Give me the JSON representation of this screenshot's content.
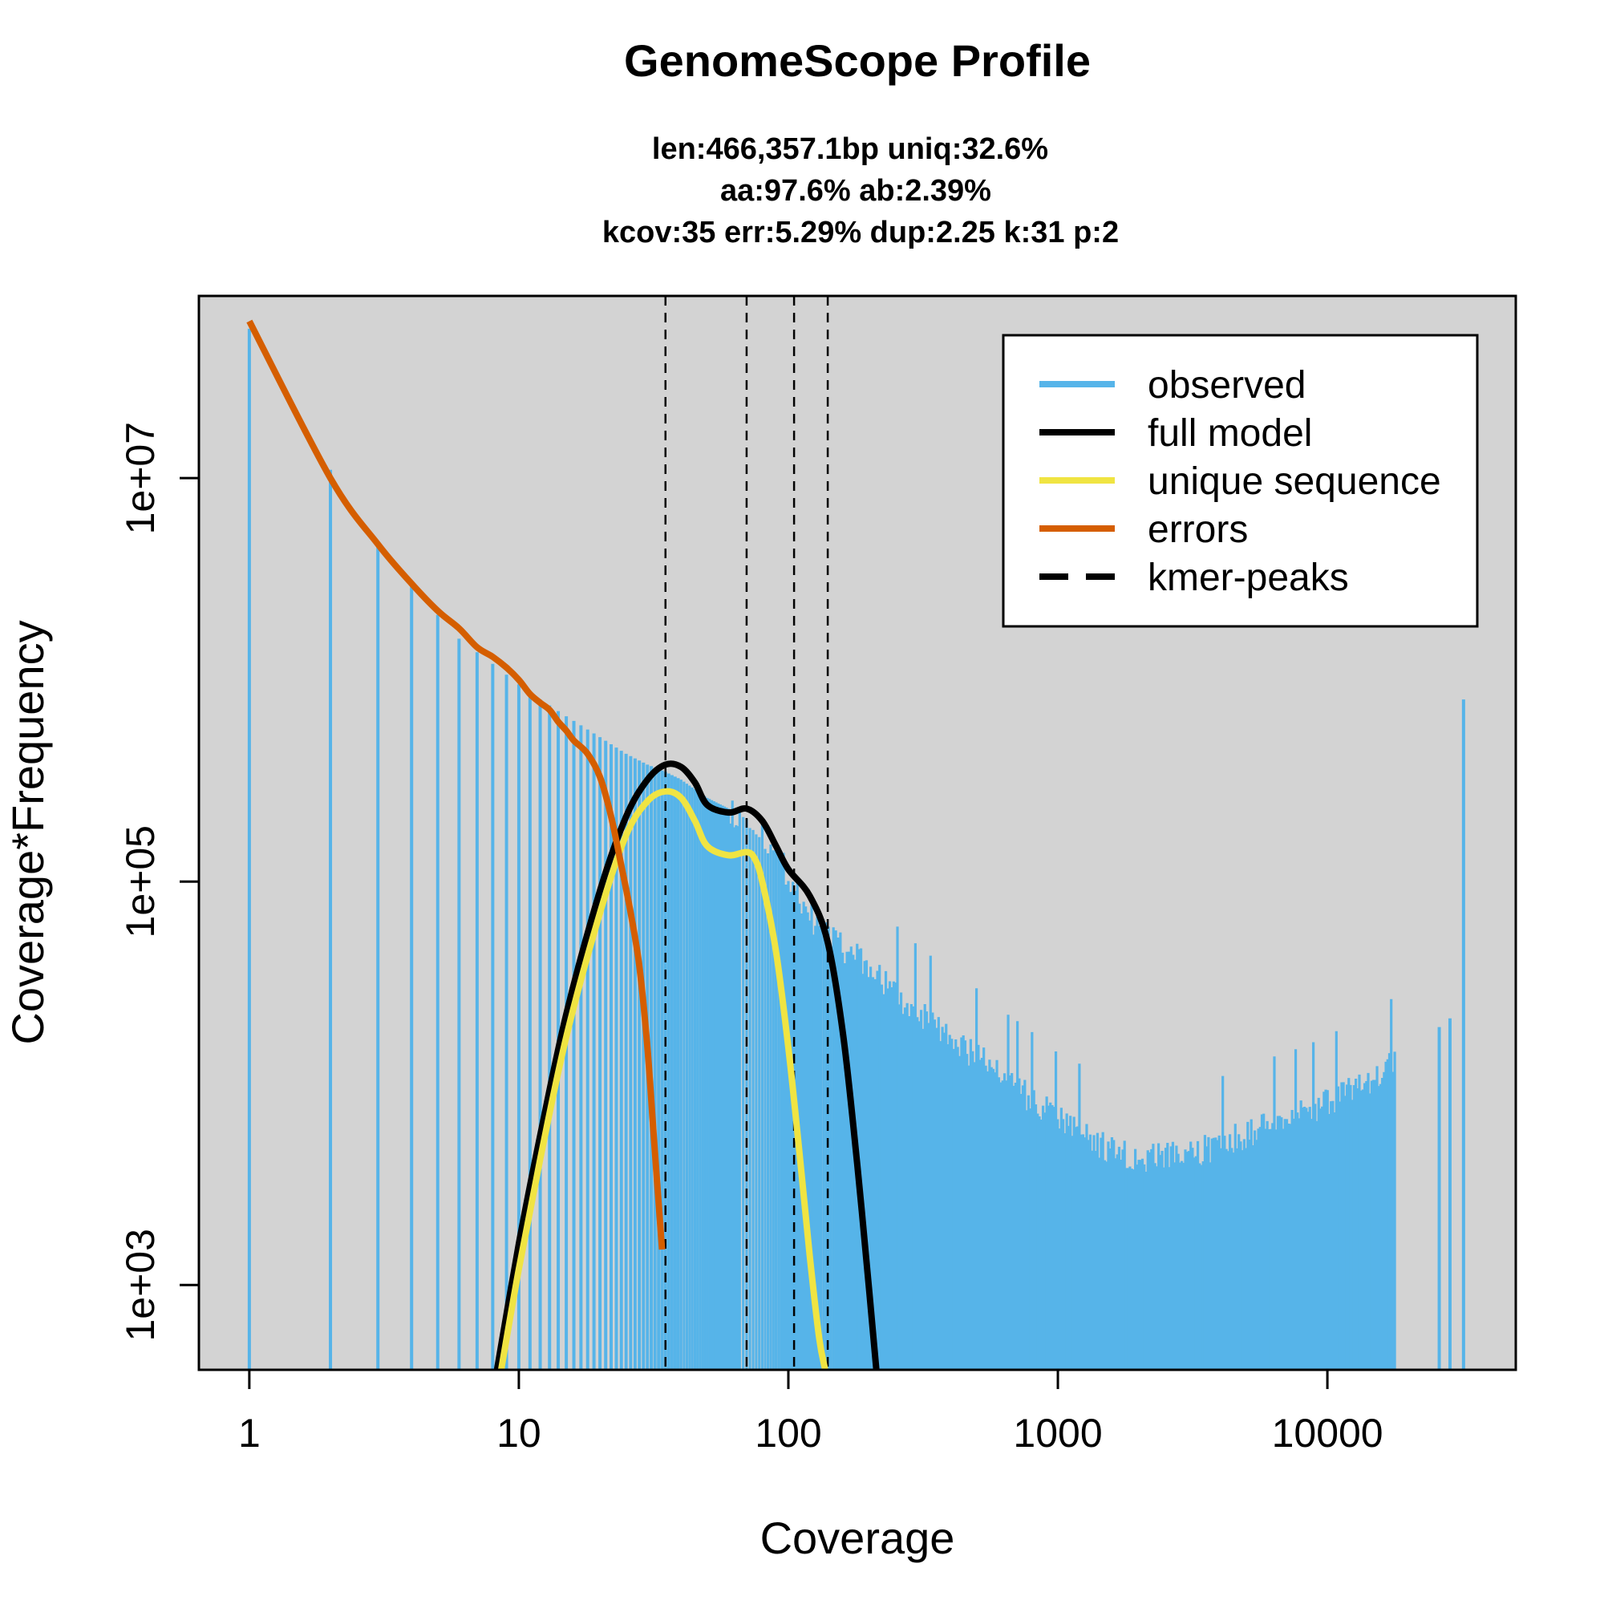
{
  "colors": {
    "observed": "#56B4E9",
    "full_model": "#000000",
    "unique": "#F0E442",
    "errors": "#D55E00",
    "peaks": "#000000",
    "panel_bg": "#D3D3D3"
  },
  "chart_data": {
    "type": "bar",
    "title": "GenomeScope Profile",
    "subtitle_lines": [
      "len:466,357.1bp uniq:32.6%",
      "aa:97.6% ab:2.39%",
      "kcov:35 err:5.29%  dup:2.25  k:31 p:2"
    ],
    "xlabel": "Coverage",
    "ylabel": "Coverage*Frequency",
    "x_scale": "log",
    "y_scale": "log",
    "xlim": [
      0.65,
      50000
    ],
    "ylim": [
      380,
      80000000
    ],
    "x_ticks": [
      {
        "value": 1,
        "label": "1"
      },
      {
        "value": 10,
        "label": "10"
      },
      {
        "value": 100,
        "label": "100"
      },
      {
        "value": 1000,
        "label": "1000"
      },
      {
        "value": 10000,
        "label": "10000"
      }
    ],
    "y_ticks": [
      {
        "value": 1000,
        "label": "1e+03"
      },
      {
        "value": 100000,
        "label": "1e+05"
      },
      {
        "value": 10000000,
        "label": "1e+07"
      }
    ],
    "grid": false,
    "legend": {
      "position": "top-right",
      "entries": [
        {
          "label": "observed",
          "color": "#56B4E9",
          "style": "solid"
        },
        {
          "label": "full model",
          "color": "#000000",
          "style": "solid"
        },
        {
          "label": "unique sequence",
          "color": "#F0E442",
          "style": "solid"
        },
        {
          "label": "errors",
          "color": "#D55E00",
          "style": "solid"
        },
        {
          "label": "kmer-peaks",
          "color": "#000000",
          "style": "dashed"
        }
      ]
    },
    "kmer_peaks": [
      35,
      70,
      105,
      140
    ],
    "observed_profile": [
      [
        1,
        55000000
      ],
      [
        2,
        11000000
      ],
      [
        3,
        4600000
      ],
      [
        4,
        3000000
      ],
      [
        5,
        2100000
      ],
      [
        6,
        1600000
      ],
      [
        8,
        1200000
      ],
      [
        10,
        950000
      ],
      [
        12,
        800000
      ],
      [
        15,
        660000
      ],
      [
        20,
        520000
      ],
      [
        25,
        430000
      ],
      [
        30,
        380000
      ],
      [
        35,
        350000
      ],
      [
        40,
        320000
      ],
      [
        50,
        260000
      ],
      [
        60,
        230000
      ],
      [
        70,
        215000
      ],
      [
        75,
        200000
      ],
      [
        80,
        180000
      ],
      [
        100,
        110000
      ],
      [
        120,
        70000
      ],
      [
        140,
        55000
      ],
      [
        150,
        50000
      ],
      [
        200,
        38000
      ],
      [
        300,
        23000
      ],
      [
        400,
        17000
      ],
      [
        500,
        14000
      ],
      [
        600,
        11500
      ],
      [
        800,
        8500
      ],
      [
        1000,
        6800
      ],
      [
        1500,
        5000
      ],
      [
        2000,
        4400
      ],
      [
        3000,
        4500
      ],
      [
        5000,
        5700
      ],
      [
        8000,
        7200
      ],
      [
        10000,
        8200
      ],
      [
        14000,
        10500
      ],
      [
        18000,
        13000
      ]
    ],
    "observed_extra_bars": [
      [
        26000,
        19000
      ],
      [
        28500,
        21000
      ],
      [
        32000,
        800000
      ]
    ],
    "series": [
      {
        "name": "full model",
        "x": [
          8.3,
          10,
          12,
          15,
          20,
          25,
          30,
          35,
          40,
          45,
          50,
          60,
          70,
          80,
          90,
          100,
          120,
          140,
          160,
          180,
          200,
          212
        ],
        "values": [
          380,
          1600,
          5500,
          22000,
          90000,
          210000,
          320000,
          380000,
          370000,
          310000,
          240000,
          220000,
          230000,
          200000,
          150000,
          115000,
          85000,
          50000,
          17000,
          4000,
          900,
          380
        ]
      },
      {
        "name": "unique sequence",
        "x": [
          8.6,
          10,
          12,
          15,
          20,
          25,
          30,
          35,
          40,
          45,
          50,
          60,
          70,
          75,
          80,
          90,
          100,
          110,
          120,
          130,
          137
        ],
        "values": [
          380,
          1200,
          4200,
          17000,
          70000,
          170000,
          250000,
          280000,
          260000,
          200000,
          150000,
          135000,
          140000,
          130000,
          100000,
          45000,
          15000,
          4500,
          1400,
          550,
          380
        ]
      },
      {
        "name": "errors",
        "x": [
          1,
          2,
          3,
          4,
          5,
          6,
          7,
          8,
          9,
          10,
          11,
          12,
          13,
          14,
          15,
          16,
          18,
          20,
          22,
          24,
          26,
          28,
          30,
          32,
          34
        ],
        "values": [
          60000000,
          10000000,
          4700000,
          3000000,
          2200000,
          1800000,
          1450000,
          1300000,
          1150000,
          1000000,
          850000,
          770000,
          710000,
          620000,
          560000,
          500000,
          430000,
          330000,
          210000,
          120000,
          70000,
          38000,
          15000,
          4500,
          1500
        ]
      }
    ]
  }
}
